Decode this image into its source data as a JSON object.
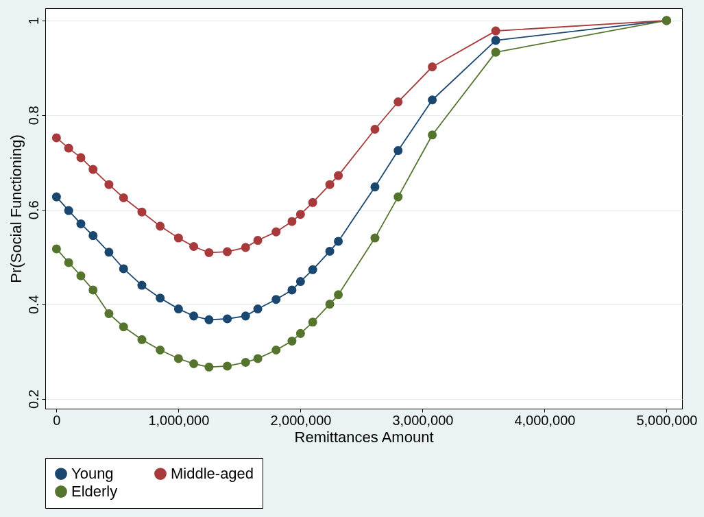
{
  "chart_data": {
    "type": "line",
    "xlabel": "Remittances Amount",
    "ylabel": "Pr(Social Functioning)",
    "xlim": [
      -92000,
      5127000
    ],
    "ylim": [
      0.179,
      1.026
    ],
    "xticks": [
      0,
      {
        "value": 1000000,
        "label": "1,000,000"
      },
      {
        "value": 2000000,
        "label": "2,000,000"
      },
      {
        "value": 3000000,
        "label": "3,000,000"
      },
      {
        "value": 4000000,
        "label": "4,000,000"
      },
      {
        "value": 5000000,
        "label": "5,000,000"
      }
    ],
    "yticks": [
      {
        "value": 0.2,
        "label": "0.2"
      },
      {
        "value": 0.4,
        "label": "0.4"
      },
      {
        "value": 0.6,
        "label": "0.6"
      },
      {
        "value": 0.8,
        "label": "0.8"
      },
      1
    ],
    "grid": "y",
    "legend": "bottom",
    "marker": "circle",
    "line_style": "solid",
    "series": [
      {
        "name": "Young",
        "color": "#1a476f",
        "x": [
          0,
          100000,
          200000,
          300000,
          430000,
          550000,
          700000,
          850000,
          1000000,
          1125000,
          1250000,
          1400000,
          1550000,
          1650000,
          1800000,
          1930000,
          2000000,
          2100000,
          2240000,
          2310000,
          2610000,
          2800000,
          3080000,
          3600000,
          5000000
        ],
        "values": [
          0.627,
          0.598,
          0.57,
          0.545,
          0.51,
          0.475,
          0.44,
          0.413,
          0.39,
          0.375,
          0.367,
          0.369,
          0.375,
          0.39,
          0.41,
          0.43,
          0.448,
          0.473,
          0.512,
          0.533,
          0.648,
          0.725,
          0.832,
          0.958,
          1.0
        ]
      },
      {
        "name": "Middle-aged",
        "color": "#a83a3c",
        "x": [
          0,
          100000,
          200000,
          300000,
          430000,
          550000,
          700000,
          850000,
          1000000,
          1125000,
          1250000,
          1400000,
          1550000,
          1650000,
          1800000,
          1930000,
          2000000,
          2100000,
          2240000,
          2310000,
          2610000,
          2800000,
          3080000,
          3600000,
          5000000
        ],
        "values": [
          0.752,
          0.73,
          0.71,
          0.685,
          0.653,
          0.625,
          0.595,
          0.565,
          0.54,
          0.522,
          0.509,
          0.511,
          0.52,
          0.535,
          0.553,
          0.575,
          0.59,
          0.615,
          0.653,
          0.672,
          0.77,
          0.828,
          0.902,
          0.978,
          1.0
        ]
      },
      {
        "name": "Elderly",
        "color": "#55752f",
        "x": [
          0,
          100000,
          200000,
          300000,
          430000,
          550000,
          700000,
          850000,
          1000000,
          1125000,
          1250000,
          1400000,
          1550000,
          1650000,
          1800000,
          1930000,
          2000000,
          2100000,
          2240000,
          2310000,
          2610000,
          2800000,
          3080000,
          3600000,
          5000000
        ],
        "values": [
          0.517,
          0.488,
          0.46,
          0.43,
          0.38,
          0.352,
          0.325,
          0.303,
          0.285,
          0.274,
          0.267,
          0.269,
          0.277,
          0.285,
          0.303,
          0.322,
          0.338,
          0.362,
          0.4,
          0.42,
          0.54,
          0.627,
          0.758,
          0.933,
          1.0
        ]
      }
    ]
  }
}
